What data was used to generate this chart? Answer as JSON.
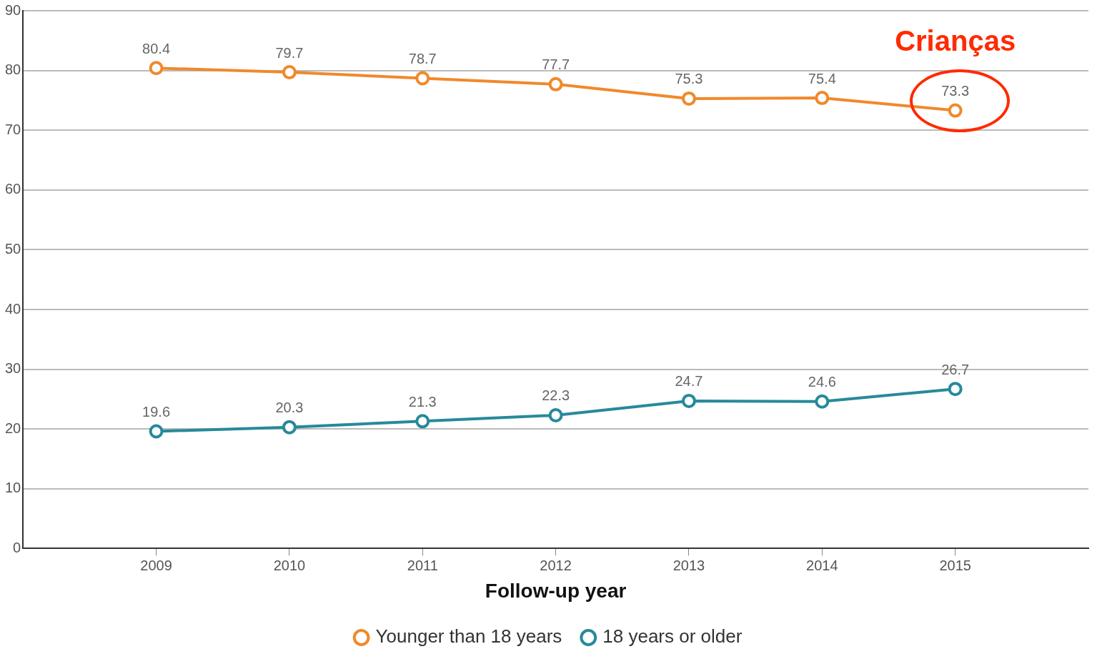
{
  "chart_data": {
    "type": "line",
    "xlabel": "Follow-up year",
    "x": [
      2009,
      2010,
      2011,
      2012,
      2013,
      2014,
      2015
    ],
    "series": [
      {
        "name": "Younger than 18 years",
        "color": "#f0892b",
        "values": [
          80.4,
          79.7,
          78.7,
          77.7,
          75.3,
          75.4,
          73.3
        ]
      },
      {
        "name": "18 years or older",
        "color": "#268a9a",
        "values": [
          19.6,
          20.3,
          21.3,
          22.3,
          24.7,
          24.6,
          26.7
        ]
      }
    ],
    "xlim": [
      2008,
      2016
    ],
    "xticks": [
      2009,
      2010,
      2011,
      2012,
      2013,
      2014,
      2015
    ],
    "ylim": [
      0,
      90
    ],
    "yticks": [
      0,
      10,
      20,
      30,
      40,
      50,
      60,
      70,
      80,
      90
    ],
    "grid": "y",
    "legend": "bottom",
    "marker": "circle",
    "line_style": "solid",
    "data_labels": true,
    "annotations": [
      {
        "text": "Crianças",
        "x": 2015,
        "y": 73.3
      }
    ]
  }
}
